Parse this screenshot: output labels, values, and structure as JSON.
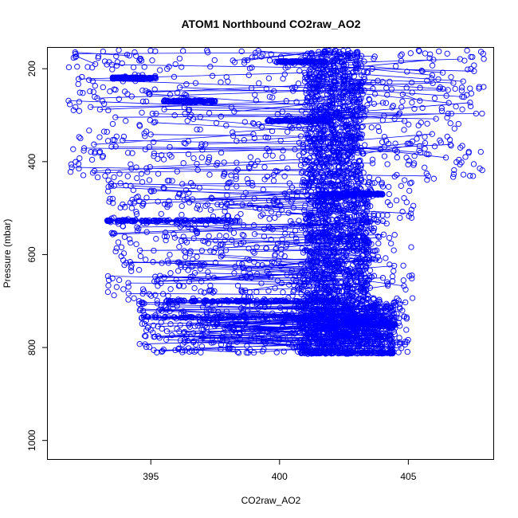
{
  "chart_data": {
    "type": "scatter",
    "title": "ATOM1 Northbound CO2raw_AO2",
    "xlabel": "CO2raw_AO2",
    "ylabel": "Pressure (mbar)",
    "xlim": [
      391.0,
      408.3
    ],
    "ylim": [
      1040,
      155
    ],
    "y_reversed": true,
    "xticks": [
      395,
      400,
      405
    ],
    "yticks": [
      200,
      400,
      600,
      800,
      1000
    ],
    "series": [
      {
        "style": "points+lines",
        "marker": "open-circle",
        "color": "#0000ff",
        "description_density": [
          {
            "p_range": [
              160,
              440
            ],
            "x_spread": [
              391.8,
              408.0
            ],
            "x_core": [
              401.0,
              403.2
            ]
          },
          {
            "p_range": [
              440,
              700
            ],
            "x_spread": [
              393.3,
              405.2
            ],
            "x_core": [
              401.0,
              403.5
            ]
          },
          {
            "p_range": [
              700,
              812
            ],
            "x_spread": [
              394.5,
              405.0
            ],
            "x_core": [
              400.8,
              404.5
            ]
          }
        ],
        "bands": [
          {
            "p": 185,
            "x": [
              399.8,
              401.8
            ]
          },
          {
            "p": 220,
            "x": [
              393.5,
              395.2
            ]
          },
          {
            "p": 270,
            "x": [
              395.5,
              397.5
            ]
          },
          {
            "p": 312,
            "x": [
              399.5,
              402.0
            ]
          },
          {
            "p": 470,
            "x": [
              401.5,
              404.0
            ]
          },
          {
            "p": 527,
            "x": [
              393.2,
              398.5
            ]
          },
          {
            "p": 700,
            "x": [
              395.5,
              402.5
            ]
          },
          {
            "p": 735,
            "x": [
              394.5,
              403.8
            ]
          },
          {
            "p": 750,
            "x": [
              402.0,
              404.5
            ]
          },
          {
            "p": 812,
            "x": [
              400.8,
              404.5
            ]
          }
        ]
      }
    ]
  }
}
